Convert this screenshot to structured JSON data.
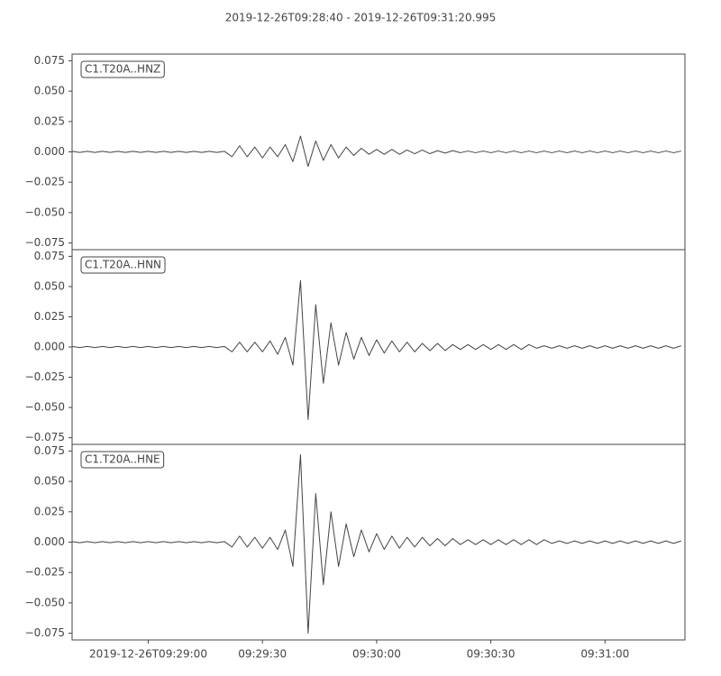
{
  "title": "2019-12-26T09:28:40  -  2019-12-26T09:31:20.995",
  "chart_data": [
    {
      "type": "line",
      "title": "C1.T20A..HNZ",
      "color": "#444444",
      "xlim": [
        "2019-12-26T09:28:40",
        "2019-12-26T09:31:20.995"
      ],
      "ylim": [
        -0.0805,
        0.0805
      ],
      "yticks": [
        0.075,
        {
          "value": 0.05,
          "label": "0.050"
        },
        0.025,
        {
          "value": 0,
          "label": "0.000"
        },
        {
          "value": -0.025,
          "label": "−0.025"
        },
        {
          "value": -0.05,
          "label": "−0.050"
        },
        {
          "value": -0.075,
          "label": "−0.075"
        }
      ],
      "x": [
        "2019-12-26T09:28:40",
        "2019-12-26T09:28:42",
        "2019-12-26T09:28:44",
        "2019-12-26T09:28:46",
        "2019-12-26T09:28:48",
        "2019-12-26T09:28:50",
        "2019-12-26T09:28:52",
        "2019-12-26T09:28:54",
        "2019-12-26T09:28:56",
        "2019-12-26T09:28:58",
        "2019-12-26T09:29:00",
        "2019-12-26T09:29:02",
        "2019-12-26T09:29:04",
        "2019-12-26T09:29:06",
        "2019-12-26T09:29:08",
        "2019-12-26T09:29:10",
        "2019-12-26T09:29:12",
        "2019-12-26T09:29:14",
        "2019-12-26T09:29:16",
        "2019-12-26T09:29:18",
        "2019-12-26T09:29:20",
        "2019-12-26T09:29:22",
        "2019-12-26T09:29:24",
        "2019-12-26T09:29:26",
        "2019-12-26T09:29:28",
        "2019-12-26T09:29:30",
        "2019-12-26T09:29:32",
        "2019-12-26T09:29:34",
        "2019-12-26T09:29:36",
        "2019-12-26T09:29:38",
        "2019-12-26T09:29:40",
        "2019-12-26T09:29:42",
        "2019-12-26T09:29:44",
        "2019-12-26T09:29:46",
        "2019-12-26T09:29:48",
        "2019-12-26T09:29:50",
        "2019-12-26T09:29:52",
        "2019-12-26T09:29:54",
        "2019-12-26T09:29:56",
        "2019-12-26T09:29:58",
        "2019-12-26T09:30:00",
        "2019-12-26T09:30:02",
        "2019-12-26T09:30:04",
        "2019-12-26T09:30:06",
        "2019-12-26T09:30:08",
        "2019-12-26T09:30:10",
        "2019-12-26T09:30:12",
        "2019-12-26T09:30:14",
        "2019-12-26T09:30:16",
        "2019-12-26T09:30:18",
        "2019-12-26T09:30:20",
        "2019-12-26T09:30:22",
        "2019-12-26T09:30:24",
        "2019-12-26T09:30:26",
        "2019-12-26T09:30:28",
        "2019-12-26T09:30:30",
        "2019-12-26T09:30:32",
        "2019-12-26T09:30:34",
        "2019-12-26T09:30:36",
        "2019-12-26T09:30:38",
        "2019-12-26T09:30:40",
        "2019-12-26T09:30:42",
        "2019-12-26T09:30:44",
        "2019-12-26T09:30:46",
        "2019-12-26T09:30:48",
        "2019-12-26T09:30:50",
        "2019-12-26T09:30:52",
        "2019-12-26T09:30:54",
        "2019-12-26T09:30:56",
        "2019-12-26T09:30:58",
        "2019-12-26T09:31:00",
        "2019-12-26T09:31:02",
        "2019-12-26T09:31:04",
        "2019-12-26T09:31:06",
        "2019-12-26T09:31:08",
        "2019-12-26T09:31:10",
        "2019-12-26T09:31:12",
        "2019-12-26T09:31:14",
        "2019-12-26T09:31:16",
        "2019-12-26T09:31:18",
        "2019-12-26T09:31:20"
      ],
      "values": [
        0.0005,
        -0.0005,
        0.0005,
        -0.0005,
        0.0005,
        -0.0005,
        0.0005,
        -0.0005,
        0.0005,
        -0.0005,
        0.0005,
        -0.0005,
        0.0005,
        -0.0005,
        0.0005,
        -0.0005,
        0.0005,
        -0.0005,
        0.0005,
        -0.0005,
        0.0005,
        -0.004,
        0.005,
        -0.004,
        0.004,
        -0.005,
        0.004,
        -0.004,
        0.006,
        -0.008,
        0.013,
        -0.012,
        0.009,
        -0.007,
        0.006,
        -0.005,
        0.004,
        -0.003,
        0.003,
        -0.002,
        0.002,
        -0.002,
        0.002,
        -0.002,
        0.0015,
        -0.0015,
        0.0015,
        -0.0015,
        0.001,
        -0.001,
        0.001,
        -0.0007,
        0.0007,
        -0.0007,
        0.0007,
        -0.0007,
        0.0007,
        -0.0007,
        0.0007,
        -0.0007,
        0.0007,
        -0.0007,
        0.0007,
        -0.0007,
        0.0007,
        -0.0007,
        0.0007,
        -0.0007,
        0.0007,
        -0.0007,
        0.0007,
        -0.0007,
        0.0007,
        -0.0007,
        0.0007,
        -0.0007,
        0.0007,
        -0.0007,
        0.0007,
        -0.0007,
        0.0007
      ]
    },
    {
      "type": "line",
      "title": "C1.T20A..HNN",
      "color": "#444444",
      "xlim": [
        "2019-12-26T09:28:40",
        "2019-12-26T09:31:20.995"
      ],
      "ylim": [
        -0.0805,
        0.0805
      ],
      "yticks": [
        0.075,
        {
          "value": 0.05,
          "label": "0.050"
        },
        0.025,
        {
          "value": 0,
          "label": "0.000"
        },
        {
          "value": -0.025,
          "label": "−0.025"
        },
        {
          "value": -0.05,
          "label": "−0.050"
        },
        {
          "value": -0.075,
          "label": "−0.075"
        }
      ],
      "x": [
        "2019-12-26T09:28:40",
        "2019-12-26T09:28:42",
        "2019-12-26T09:28:44",
        "2019-12-26T09:28:46",
        "2019-12-26T09:28:48",
        "2019-12-26T09:28:50",
        "2019-12-26T09:28:52",
        "2019-12-26T09:28:54",
        "2019-12-26T09:28:56",
        "2019-12-26T09:28:58",
        "2019-12-26T09:29:00",
        "2019-12-26T09:29:02",
        "2019-12-26T09:29:04",
        "2019-12-26T09:29:06",
        "2019-12-26T09:29:08",
        "2019-12-26T09:29:10",
        "2019-12-26T09:29:12",
        "2019-12-26T09:29:14",
        "2019-12-26T09:29:16",
        "2019-12-26T09:29:18",
        "2019-12-26T09:29:20",
        "2019-12-26T09:29:22",
        "2019-12-26T09:29:24",
        "2019-12-26T09:29:26",
        "2019-12-26T09:29:28",
        "2019-12-26T09:29:30",
        "2019-12-26T09:29:32",
        "2019-12-26T09:29:34",
        "2019-12-26T09:29:36",
        "2019-12-26T09:29:38",
        "2019-12-26T09:29:40",
        "2019-12-26T09:29:42",
        "2019-12-26T09:29:44",
        "2019-12-26T09:29:46",
        "2019-12-26T09:29:48",
        "2019-12-26T09:29:50",
        "2019-12-26T09:29:52",
        "2019-12-26T09:29:54",
        "2019-12-26T09:29:56",
        "2019-12-26T09:29:58",
        "2019-12-26T09:30:00",
        "2019-12-26T09:30:02",
        "2019-12-26T09:30:04",
        "2019-12-26T09:30:06",
        "2019-12-26T09:30:08",
        "2019-12-26T09:30:10",
        "2019-12-26T09:30:12",
        "2019-12-26T09:30:14",
        "2019-12-26T09:30:16",
        "2019-12-26T09:30:18",
        "2019-12-26T09:30:20",
        "2019-12-26T09:30:22",
        "2019-12-26T09:30:24",
        "2019-12-26T09:30:26",
        "2019-12-26T09:30:28",
        "2019-12-26T09:30:30",
        "2019-12-26T09:30:32",
        "2019-12-26T09:30:34",
        "2019-12-26T09:30:36",
        "2019-12-26T09:30:38",
        "2019-12-26T09:30:40",
        "2019-12-26T09:30:42",
        "2019-12-26T09:30:44",
        "2019-12-26T09:30:46",
        "2019-12-26T09:30:48",
        "2019-12-26T09:30:50",
        "2019-12-26T09:30:52",
        "2019-12-26T09:30:54",
        "2019-12-26T09:30:56",
        "2019-12-26T09:30:58",
        "2019-12-26T09:31:00",
        "2019-12-26T09:31:02",
        "2019-12-26T09:31:04",
        "2019-12-26T09:31:06",
        "2019-12-26T09:31:08",
        "2019-12-26T09:31:10",
        "2019-12-26T09:31:12",
        "2019-12-26T09:31:14",
        "2019-12-26T09:31:16",
        "2019-12-26T09:31:18",
        "2019-12-26T09:31:20"
      ],
      "values": [
        0.0005,
        -0.0005,
        0.0005,
        -0.0005,
        0.0005,
        -0.0005,
        0.0005,
        -0.0005,
        0.0005,
        -0.0005,
        0.0005,
        -0.0005,
        0.0005,
        -0.0005,
        0.0005,
        -0.0005,
        0.0005,
        -0.0005,
        0.0005,
        -0.0005,
        0.0005,
        -0.004,
        0.004,
        -0.004,
        0.004,
        -0.004,
        0.005,
        -0.006,
        0.008,
        -0.015,
        0.055,
        -0.06,
        0.035,
        -0.03,
        0.02,
        -0.015,
        0.012,
        -0.01,
        0.008,
        -0.007,
        0.006,
        -0.005,
        0.005,
        -0.004,
        0.004,
        -0.004,
        0.003,
        -0.003,
        0.003,
        -0.003,
        0.002,
        -0.002,
        0.002,
        -0.002,
        0.002,
        -0.002,
        0.002,
        -0.002,
        0.002,
        -0.002,
        0.002,
        -0.001,
        0.001,
        -0.001,
        0.001,
        -0.001,
        0.001,
        -0.001,
        0.001,
        -0.001,
        0.001,
        -0.001,
        0.001,
        -0.001,
        0.001,
        -0.001,
        0.001,
        -0.001,
        0.001,
        -0.001,
        0.001
      ]
    },
    {
      "type": "line",
      "title": "C1.T20A..HNE",
      "color": "#444444",
      "xlim": [
        "2019-12-26T09:28:40",
        "2019-12-26T09:31:20.995"
      ],
      "ylim": [
        -0.0805,
        0.0805
      ],
      "yticks": [
        0.075,
        {
          "value": 0.05,
          "label": "0.050"
        },
        0.025,
        {
          "value": 0,
          "label": "0.000"
        },
        {
          "value": -0.025,
          "label": "−0.025"
        },
        {
          "value": -0.05,
          "label": "−0.050"
        },
        {
          "value": -0.075,
          "label": "−0.075"
        }
      ],
      "xticks": [
        {
          "value": "2019-12-26T09:29:00",
          "label": "2019-12-26T09:29:00"
        },
        {
          "value": "2019-12-26T09:29:30",
          "label": "09:29:30"
        },
        {
          "value": "2019-12-26T09:30:00",
          "label": "09:30:00"
        },
        {
          "value": "2019-12-26T09:30:30",
          "label": "09:30:30"
        },
        {
          "value": "2019-12-26T09:31:00",
          "label": "09:31:00"
        }
      ],
      "x": [
        "2019-12-26T09:28:40",
        "2019-12-26T09:28:42",
        "2019-12-26T09:28:44",
        "2019-12-26T09:28:46",
        "2019-12-26T09:28:48",
        "2019-12-26T09:28:50",
        "2019-12-26T09:28:52",
        "2019-12-26T09:28:54",
        "2019-12-26T09:28:56",
        "2019-12-26T09:28:58",
        "2019-12-26T09:29:00",
        "2019-12-26T09:29:02",
        "2019-12-26T09:29:04",
        "2019-12-26T09:29:06",
        "2019-12-26T09:29:08",
        "2019-12-26T09:29:10",
        "2019-12-26T09:29:12",
        "2019-12-26T09:29:14",
        "2019-12-26T09:29:16",
        "2019-12-26T09:29:18",
        "2019-12-26T09:29:20",
        "2019-12-26T09:29:22",
        "2019-12-26T09:29:24",
        "2019-12-26T09:29:26",
        "2019-12-26T09:29:28",
        "2019-12-26T09:29:30",
        "2019-12-26T09:29:32",
        "2019-12-26T09:29:34",
        "2019-12-26T09:29:36",
        "2019-12-26T09:29:38",
        "2019-12-26T09:29:40",
        "2019-12-26T09:29:42",
        "2019-12-26T09:29:44",
        "2019-12-26T09:29:46",
        "2019-12-26T09:29:48",
        "2019-12-26T09:29:50",
        "2019-12-26T09:29:52",
        "2019-12-26T09:29:54",
        "2019-12-26T09:29:56",
        "2019-12-26T09:29:58",
        "2019-12-26T09:30:00",
        "2019-12-26T09:30:02",
        "2019-12-26T09:30:04",
        "2019-12-26T09:30:06",
        "2019-12-26T09:30:08",
        "2019-12-26T09:30:10",
        "2019-12-26T09:30:12",
        "2019-12-26T09:30:14",
        "2019-12-26T09:30:16",
        "2019-12-26T09:30:18",
        "2019-12-26T09:30:20",
        "2019-12-26T09:30:22",
        "2019-12-26T09:30:24",
        "2019-12-26T09:30:26",
        "2019-12-26T09:30:28",
        "2019-12-26T09:30:30",
        "2019-12-26T09:30:32",
        "2019-12-26T09:30:34",
        "2019-12-26T09:30:36",
        "2019-12-26T09:30:38",
        "2019-12-26T09:30:40",
        "2019-12-26T09:30:42",
        "2019-12-26T09:30:44",
        "2019-12-26T09:30:46",
        "2019-12-26T09:30:48",
        "2019-12-26T09:30:50",
        "2019-12-26T09:30:52",
        "2019-12-26T09:30:54",
        "2019-12-26T09:30:56",
        "2019-12-26T09:30:58",
        "2019-12-26T09:31:00",
        "2019-12-26T09:31:02",
        "2019-12-26T09:31:04",
        "2019-12-26T09:31:06",
        "2019-12-26T09:31:08",
        "2019-12-26T09:31:10",
        "2019-12-26T09:31:12",
        "2019-12-26T09:31:14",
        "2019-12-26T09:31:16",
        "2019-12-26T09:31:18",
        "2019-12-26T09:31:20"
      ],
      "values": [
        0.0005,
        -0.0005,
        0.0005,
        -0.0005,
        0.0005,
        -0.0005,
        0.0005,
        -0.0005,
        0.0005,
        -0.0005,
        0.0005,
        -0.0005,
        0.0005,
        -0.0005,
        0.0005,
        -0.0005,
        0.0005,
        -0.0005,
        0.0005,
        -0.0005,
        0.0005,
        -0.004,
        0.005,
        -0.004,
        0.004,
        -0.005,
        0.004,
        -0.006,
        0.01,
        -0.02,
        0.072,
        -0.075,
        0.04,
        -0.035,
        0.025,
        -0.02,
        0.015,
        -0.012,
        0.01,
        -0.008,
        0.007,
        -0.006,
        0.005,
        -0.005,
        0.004,
        -0.004,
        0.004,
        -0.003,
        0.003,
        -0.003,
        0.003,
        -0.002,
        0.002,
        -0.002,
        0.002,
        -0.002,
        0.002,
        -0.002,
        0.002,
        -0.002,
        0.002,
        -0.002,
        0.002,
        -0.001,
        0.001,
        -0.001,
        0.001,
        -0.001,
        0.001,
        -0.001,
        0.001,
        -0.001,
        0.001,
        -0.001,
        0.001,
        -0.001,
        0.001,
        -0.001,
        0.001,
        -0.001,
        0.001
      ]
    }
  ]
}
